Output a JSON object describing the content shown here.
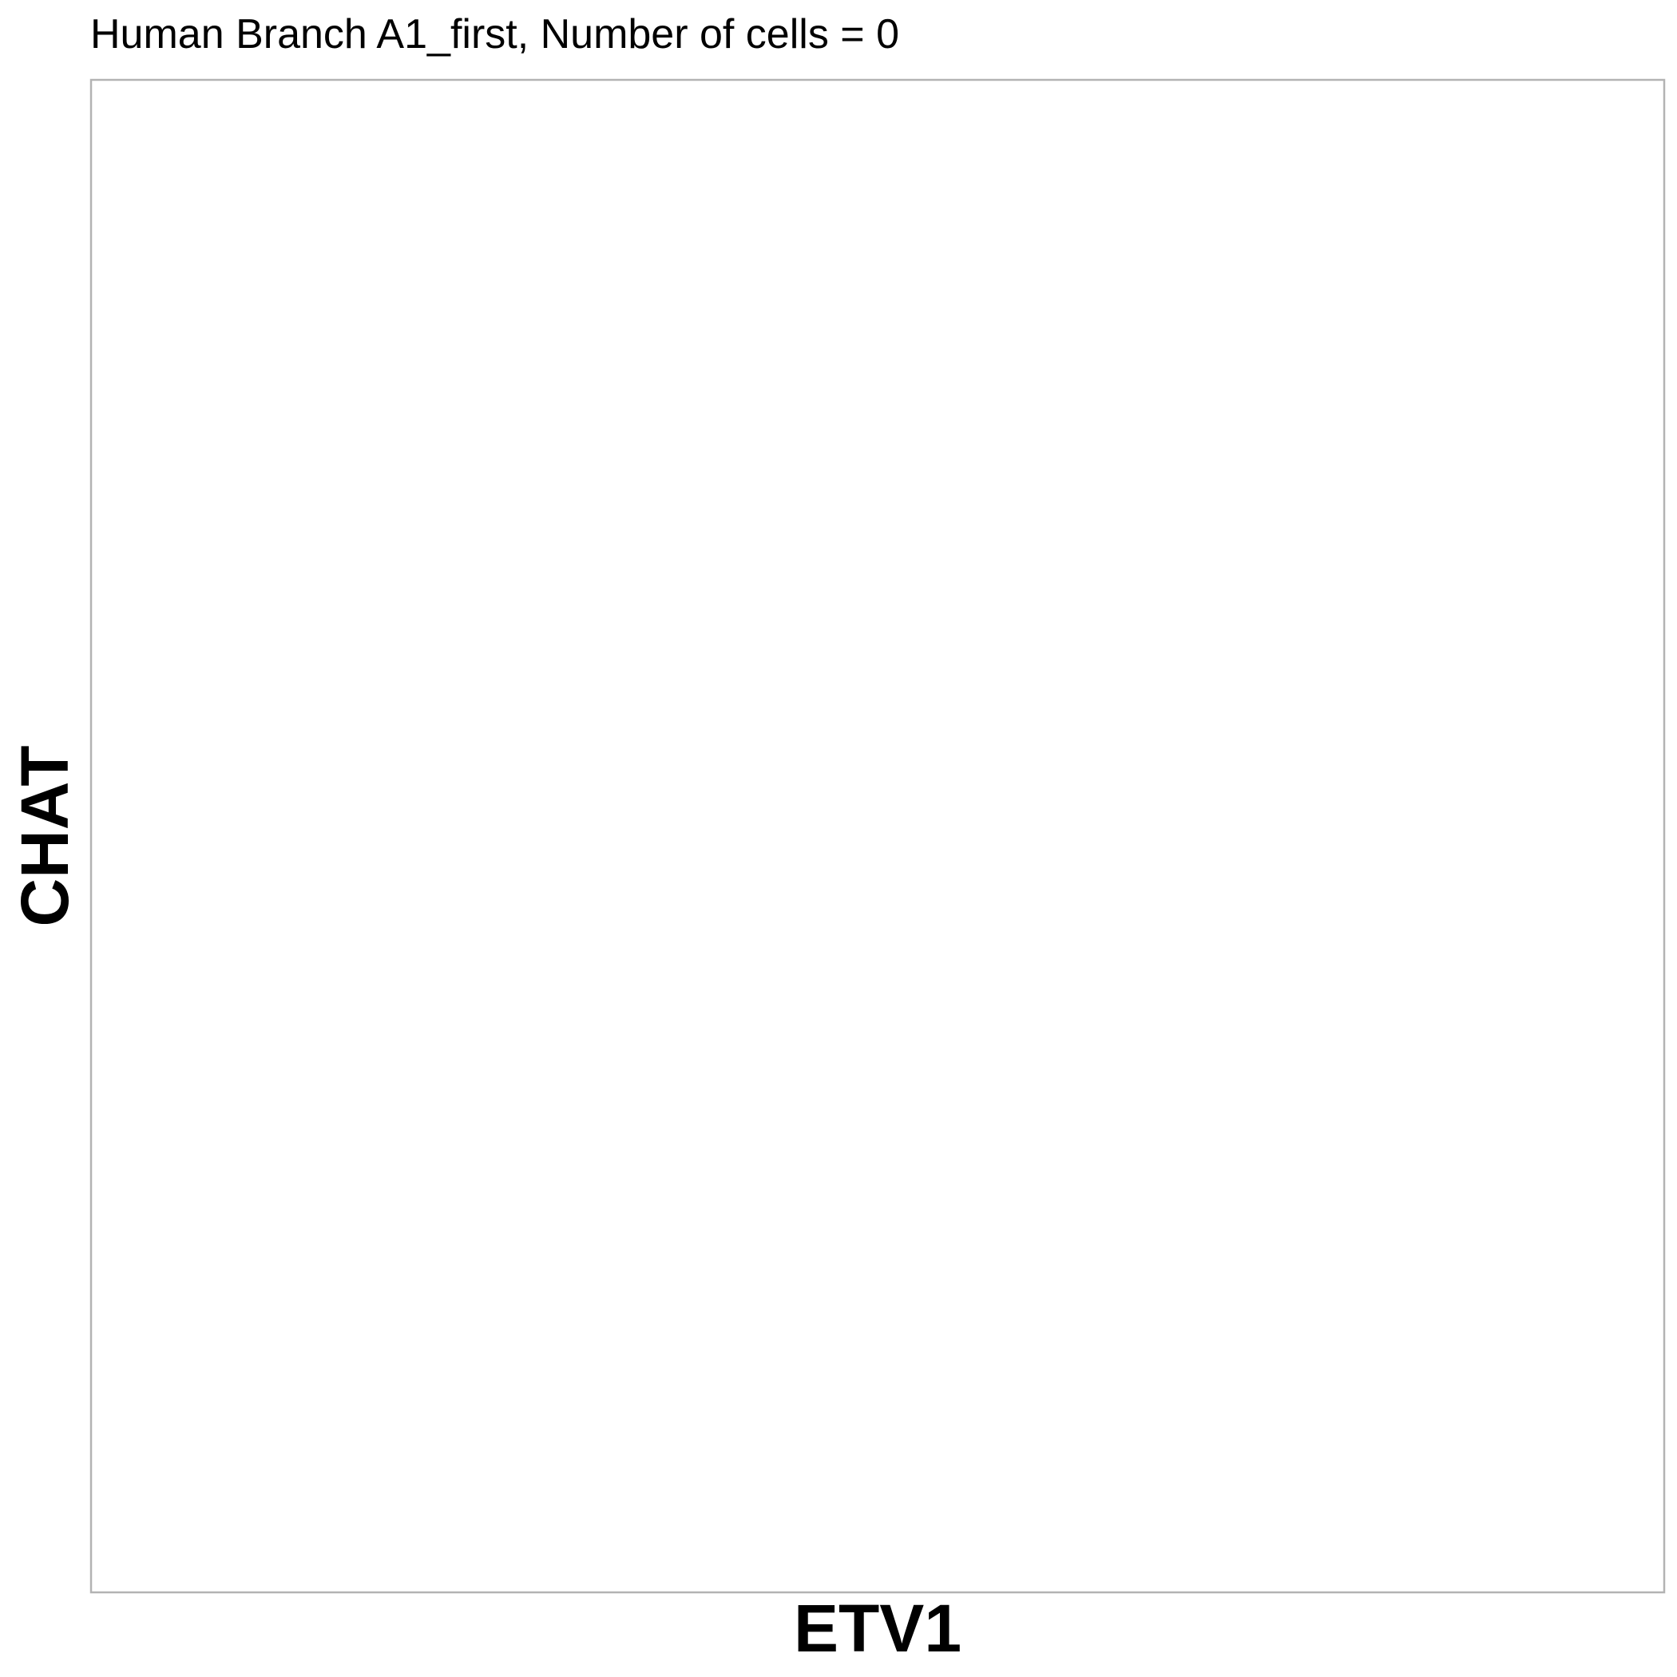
{
  "chart_data": {
    "type": "scatter",
    "title": "Human Branch A1_first, Number of cells = 0",
    "xlabel": "ETV1",
    "ylabel": "CHAT",
    "series": [
      {
        "x": [],
        "y": []
      }
    ],
    "grid": false,
    "legend": "none",
    "colors": {
      "background": "#ffffff",
      "panel_border": "#b3b3b3",
      "text": "#000000"
    }
  }
}
